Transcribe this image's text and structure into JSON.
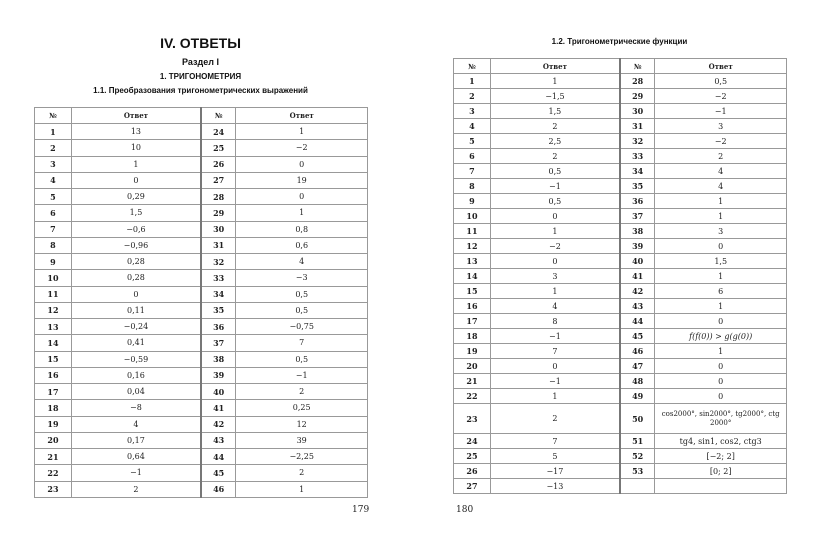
{
  "left_page": {
    "title": "IV. ОТВЕТЫ",
    "section": "Раздел I",
    "chapter": "1. ТРИГОНОМЕТРИЯ",
    "subsection": "1.1. Преобразования тригонометрических выражений",
    "headers": [
      "№",
      "Ответ",
      "№",
      "Ответ"
    ],
    "rows": [
      [
        "1",
        "13",
        "24",
        "1"
      ],
      [
        "2",
        "10",
        "25",
        "−2"
      ],
      [
        "3",
        "1",
        "26",
        "0"
      ],
      [
        "4",
        "0",
        "27",
        "19"
      ],
      [
        "5",
        "0,29",
        "28",
        "0"
      ],
      [
        "6",
        "1,5",
        "29",
        "1"
      ],
      [
        "7",
        "−0,6",
        "30",
        "0,8"
      ],
      [
        "8",
        "−0,96",
        "31",
        "0,6"
      ],
      [
        "9",
        "0,28",
        "32",
        "4"
      ],
      [
        "10",
        "0,28",
        "33",
        "−3"
      ],
      [
        "11",
        "0",
        "34",
        "0,5"
      ],
      [
        "12",
        "0,11",
        "35",
        "0,5"
      ],
      [
        "13",
        "−0,24",
        "36",
        "−0,75"
      ],
      [
        "14",
        "0,41",
        "37",
        "7"
      ],
      [
        "15",
        "−0,59",
        "38",
        "0,5"
      ],
      [
        "16",
        "0,16",
        "39",
        "−1"
      ],
      [
        "17",
        "0,04",
        "40",
        "2"
      ],
      [
        "18",
        "−8",
        "41",
        "0,25"
      ],
      [
        "19",
        "4",
        "42",
        "12"
      ],
      [
        "20",
        "0,17",
        "43",
        "39"
      ],
      [
        "21",
        "0,64",
        "44",
        "−2,25"
      ],
      [
        "22",
        "−1",
        "45",
        "2"
      ],
      [
        "23",
        "2",
        "46",
        "1"
      ]
    ],
    "page_number": "179"
  },
  "right_page": {
    "subsection": "1.2. Тригонометрические функции",
    "headers": [
      "№",
      "Ответ",
      "№",
      "Ответ"
    ],
    "rows": [
      [
        "1",
        "1",
        "28",
        "0,5"
      ],
      [
        "2",
        "−1,5",
        "29",
        "−2"
      ],
      [
        "3",
        "1,5",
        "30",
        "−1"
      ],
      [
        "4",
        "2",
        "31",
        "3"
      ],
      [
        "5",
        "2,5",
        "32",
        "−2"
      ],
      [
        "6",
        "2",
        "33",
        "2"
      ],
      [
        "7",
        "0,5",
        "34",
        "4"
      ],
      [
        "8",
        "−1",
        "35",
        "4"
      ],
      [
        "9",
        "0,5",
        "36",
        "1"
      ],
      [
        "10",
        "0",
        "37",
        "1"
      ],
      [
        "11",
        "1",
        "38",
        "3"
      ],
      [
        "12",
        "−2",
        "39",
        "0"
      ],
      [
        "13",
        "0",
        "40",
        "1,5"
      ],
      [
        "14",
        "3",
        "41",
        "1"
      ],
      [
        "15",
        "1",
        "42",
        "6"
      ],
      [
        "16",
        "4",
        "43",
        "1"
      ],
      [
        "17",
        "8",
        "44",
        "0"
      ],
      [
        "18",
        "−1",
        "45",
        "f(f(0)) > g(g(0))"
      ],
      [
        "19",
        "7",
        "46",
        "1"
      ],
      [
        "20",
        "0",
        "47",
        "0"
      ],
      [
        "21",
        "−1",
        "48",
        "0"
      ],
      [
        "22",
        "1",
        "49",
        "0"
      ],
      [
        "23",
        "2",
        "50",
        "cos2000°, sin2000°, tg2000°, ctg 2000°"
      ],
      [
        "24",
        "7",
        "51",
        "tg4, sin1, cos2, ctg3"
      ],
      [
        "25",
        "5",
        "52",
        "[−2; 2]"
      ],
      [
        "26",
        "−17",
        "53",
        "[0; 2]"
      ],
      [
        "27",
        "−13",
        "",
        ""
      ]
    ],
    "page_number": "180"
  }
}
